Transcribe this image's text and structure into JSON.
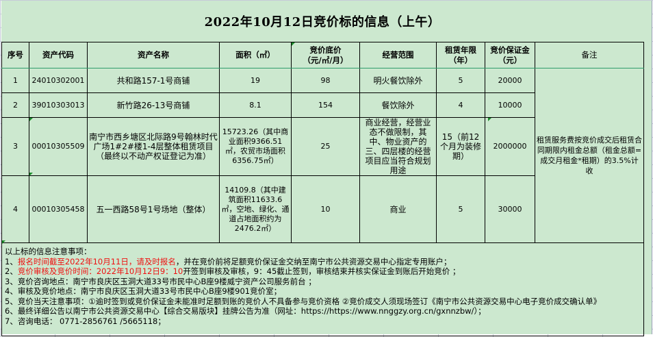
{
  "title": "2022年10月12日竞价标的信息（上午）",
  "headers": [
    "序号",
    "资产代码",
    "资产名称",
    "面积（㎡）",
    "竞价底价\n（元/㎡/月）",
    "经营范围",
    "租赁年限\n（年）",
    "竞价保证金\n（元）",
    "备注"
  ],
  "rows": [
    {
      "no": "1",
      "code": "24010302001",
      "name": "共和路157-1号商铺",
      "area": "19",
      "price": "98",
      "scope": "明火餐饮除外",
      "term": "5",
      "deposit": "20000"
    },
    {
      "no": "2",
      "code": "39010303013",
      "name": "新竹路26-13号商铺",
      "area": "8.1",
      "price": "154",
      "scope": "餐饮除外",
      "term": "4",
      "deposit": "10000"
    },
    {
      "no": "3",
      "code": "00010305509",
      "name": "南宁市西乡塘区北际路9号翰林时代广场1#2#楼1-4层整体租赁项目（最终以不动产权证登记为准）",
      "area": "15723.26（其中商业面积9366.51㎡，农贸市场面积6356.75㎡）",
      "price": "25",
      "scope": "商业经营，经营业态不做限制，其中、物业资产的三、四层楼的经营项目应当符合规划用途",
      "term": "15（前12个月为装修期）",
      "deposit": "2000000"
    },
    {
      "no": "4",
      "code": "00010305458",
      "name": "五一西路58号1号场地（整体）",
      "area": "14109.8（其中建筑面积11633.6㎡，空地、绿化、通道占地面积约为2476.2㎡）",
      "price": "10",
      "scope": "商业",
      "term": "5",
      "deposit": "30000"
    }
  ],
  "remark": "租赁服务费按竞价成交后租赁合同期限内租金总额（租金总额=成交月租金*租期）的3.5%计收",
  "notes": {
    "heading": "以上标的信息注意事项：",
    "n1_prefix": "1、",
    "n1_red": "报名时间截至2022年10月11日，请及时报名",
    "n1_rest": "，并在竞价前将足额竞价保证金交纳至南宁市公共资源交易中心指定专用账户；",
    "n2_prefix": "2、",
    "n2_red": "竞价审核及竞价时间：2022年10月12日9：10",
    "n2_rest": "开签到审核及审核，9：45截止签到，审核结束并核实保证金到账后开始竞价 ；",
    "n3": "3、竞价咨询地点：南宁市良庆区玉洞大道33号市民中心B座9楼威宁资产公司服务前台 ；",
    "n4": "4、审核及竞价地点：南宁市良庆区玉洞大道33号市民中心B座9楼901竞价室；",
    "n5": "5、竞价当天注意事项：①逾时签到或竞价保证金未能准时足额到账的竞价人不具备参与竞价资格 ②竞价成交人须现场签订《南宁市公共资源交易中心电子竞价成交确认单》",
    "n6": "6、最终详细公告以南宁市公共资源交易中心【综合交易版块】挂牌公告为准（网址：https://https://www.nnggzy.org.cn/gxnnzbw/）；",
    "n7": "7、咨询电话： 0771-2856761 /5665118；"
  },
  "colors": {
    "sheet_bg": "#cce8cf",
    "red_text": "#ee1111",
    "gridline": "#c6cbd8"
  }
}
